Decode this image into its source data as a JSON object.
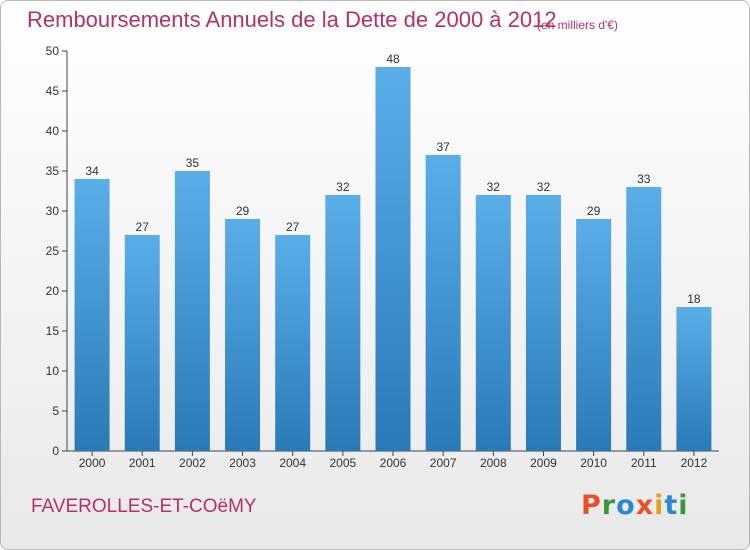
{
  "header": {
    "title": "Remboursements Annuels de la Dette de 2000 à 2012",
    "subtitle": "(en milliers d'€)"
  },
  "footer": {
    "commune": "FAVEROLLES-ET-COëMY",
    "logo_letters": [
      "P",
      "r",
      "o",
      "x",
      "i",
      "t",
      "i"
    ]
  },
  "colors": {
    "title": "#b5306a",
    "bar_top": "#5aaee8",
    "bar_bottom": "#2a7ab8",
    "logo": [
      "#e8502a",
      "#3a9a3a",
      "#2a8ad0",
      "#e8502a",
      "#e8a020",
      "#2a8ad0",
      "#3a9a3a"
    ]
  },
  "chart_data": {
    "type": "bar",
    "title": "Remboursements Annuels de la Dette de 2000 à 2012",
    "xlabel": "",
    "ylabel": "",
    "categories": [
      "2000",
      "2001",
      "2002",
      "2003",
      "2004",
      "2005",
      "2006",
      "2007",
      "2008",
      "2009",
      "2010",
      "2011",
      "2012"
    ],
    "values": [
      34,
      27,
      35,
      29,
      27,
      32,
      48,
      37,
      32,
      32,
      29,
      33,
      18
    ],
    "ylim": [
      0,
      50
    ],
    "yticks": [
      0,
      5,
      10,
      15,
      20,
      25,
      30,
      35,
      40,
      45,
      50
    ],
    "grid": false,
    "legend": "none"
  }
}
